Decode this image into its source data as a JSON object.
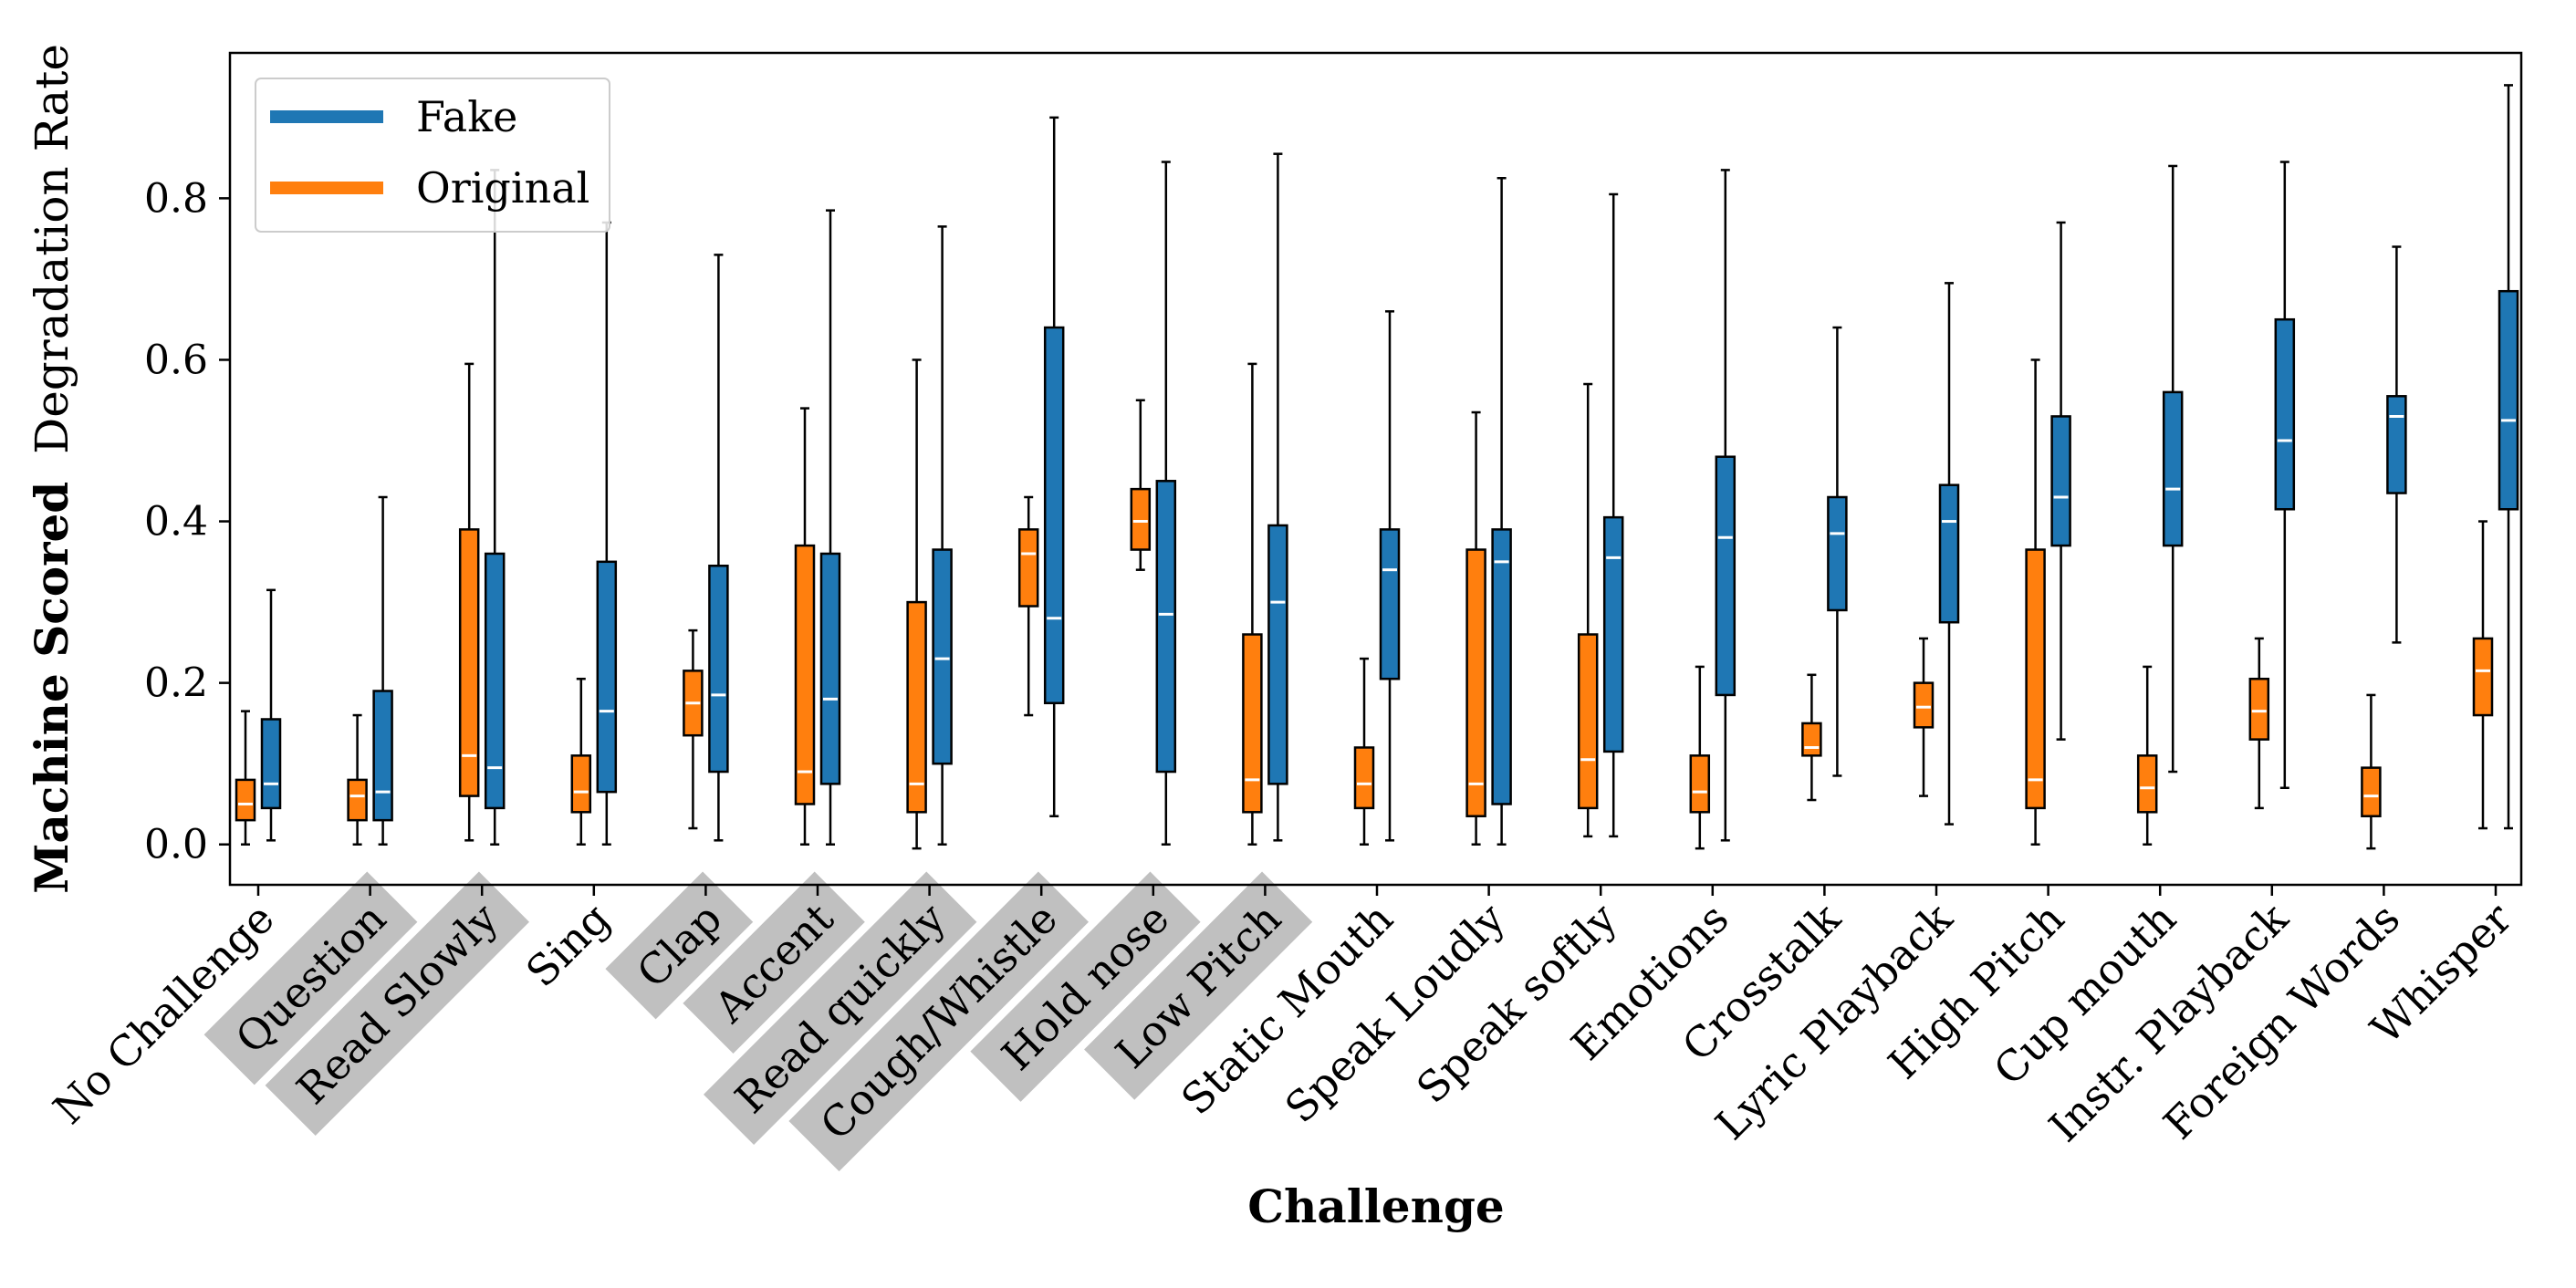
{
  "chart_data": {
    "type": "boxplot",
    "xlabel": "Challenge",
    "ylabel_bold": "Machine Scored",
    "ylabel_rest": "Degradation Rate",
    "ylim": [
      -0.05,
      0.98
    ],
    "yticks": [
      0.0,
      0.2,
      0.4,
      0.6,
      0.8
    ],
    "ytick_labels": [
      "0.0",
      "0.2",
      "0.4",
      "0.6",
      "0.8"
    ],
    "legend_position": "top-left",
    "colors": {
      "Fake": "#1f77b4",
      "Original": "#ff7f0e",
      "highlight": "#c0c0c0"
    },
    "legend": [
      {
        "name": "Fake",
        "color": "#1f77b4"
      },
      {
        "name": "Original",
        "color": "#ff7f0e"
      }
    ],
    "highlighted_categories": [
      "Question",
      "Read Slowly",
      "Clap",
      "Accent",
      "Read quickly",
      "Cough/Whistle",
      "Hold nose",
      "Low Pitch"
    ],
    "categories": [
      "No Challenge",
      "Question",
      "Read Slowly",
      "Sing",
      "Clap",
      "Accent",
      "Read quickly",
      "Cough/Whistle",
      "Hold nose",
      "Low Pitch",
      "Static Mouth",
      "Speak Loudly",
      "Speak softly",
      "Emotions",
      "Crosstalk",
      "Lyric Playback",
      "High Pitch",
      "Cup mouth",
      "Instr. Playback",
      "Foreign Words",
      "Whisper"
    ],
    "series": [
      {
        "name": "Original",
        "boxes": [
          [
            0.0,
            0.03,
            0.05,
            0.08,
            0.165
          ],
          [
            0.0,
            0.03,
            0.06,
            0.08,
            0.16
          ],
          [
            0.005,
            0.06,
            0.11,
            0.39,
            0.595
          ],
          [
            0.0,
            0.04,
            0.065,
            0.11,
            0.205
          ],
          [
            0.02,
            0.135,
            0.175,
            0.215,
            0.265
          ],
          [
            0.0,
            0.05,
            0.09,
            0.37,
            0.54
          ],
          [
            -0.005,
            0.04,
            0.075,
            0.3,
            0.6
          ],
          [
            0.16,
            0.295,
            0.36,
            0.39,
            0.43
          ],
          [
            0.34,
            0.365,
            0.4,
            0.44,
            0.55
          ],
          [
            0.0,
            0.04,
            0.08,
            0.26,
            0.595
          ],
          [
            0.0,
            0.045,
            0.075,
            0.12,
            0.23
          ],
          [
            0.0,
            0.035,
            0.075,
            0.365,
            0.535
          ],
          [
            0.01,
            0.045,
            0.105,
            0.26,
            0.57
          ],
          [
            -0.005,
            0.04,
            0.065,
            0.11,
            0.22
          ],
          [
            0.055,
            0.11,
            0.12,
            0.15,
            0.21
          ],
          [
            0.06,
            0.145,
            0.17,
            0.2,
            0.255
          ],
          [
            0.0,
            0.045,
            0.08,
            0.365,
            0.6
          ],
          [
            0.0,
            0.04,
            0.07,
            0.11,
            0.22
          ],
          [
            0.045,
            0.13,
            0.165,
            0.205,
            0.255
          ],
          [
            -0.005,
            0.035,
            0.06,
            0.095,
            0.185
          ],
          [
            0.02,
            0.16,
            0.215,
            0.255,
            0.4
          ]
        ]
      },
      {
        "name": "Fake",
        "boxes": [
          [
            0.005,
            0.045,
            0.075,
            0.155,
            0.315
          ],
          [
            0.0,
            0.03,
            0.065,
            0.19,
            0.43
          ],
          [
            0.0,
            0.045,
            0.095,
            0.36,
            0.835
          ],
          [
            0.0,
            0.065,
            0.165,
            0.35,
            0.77
          ],
          [
            0.005,
            0.09,
            0.185,
            0.345,
            0.73
          ],
          [
            0.0,
            0.075,
            0.18,
            0.36,
            0.785
          ],
          [
            0.0,
            0.1,
            0.23,
            0.365,
            0.765
          ],
          [
            0.035,
            0.175,
            0.28,
            0.64,
            0.9
          ],
          [
            0.0,
            0.09,
            0.285,
            0.45,
            0.845
          ],
          [
            0.005,
            0.075,
            0.3,
            0.395,
            0.855
          ],
          [
            0.005,
            0.205,
            0.34,
            0.39,
            0.66
          ],
          [
            0.0,
            0.05,
            0.35,
            0.39,
            0.825
          ],
          [
            0.01,
            0.115,
            0.355,
            0.405,
            0.805
          ],
          [
            0.005,
            0.185,
            0.38,
            0.48,
            0.835
          ],
          [
            0.085,
            0.29,
            0.385,
            0.43,
            0.64
          ],
          [
            0.025,
            0.275,
            0.4,
            0.445,
            0.695
          ],
          [
            0.13,
            0.37,
            0.43,
            0.53,
            0.77
          ],
          [
            0.09,
            0.37,
            0.44,
            0.56,
            0.84
          ],
          [
            0.07,
            0.415,
            0.5,
            0.65,
            0.845
          ],
          [
            0.25,
            0.435,
            0.53,
            0.555,
            0.74
          ],
          [
            0.02,
            0.415,
            0.525,
            0.685,
            0.94
          ]
        ]
      }
    ]
  }
}
